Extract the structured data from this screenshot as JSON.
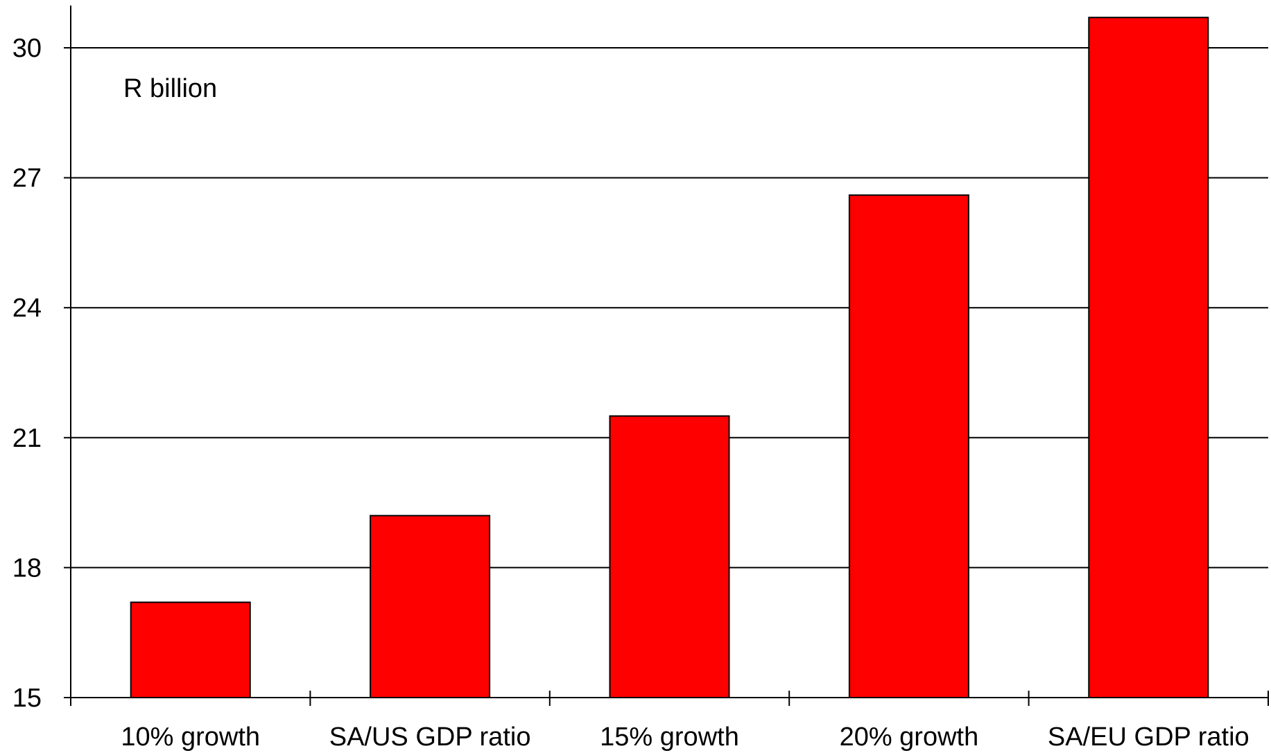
{
  "chart_data": {
    "type": "bar",
    "unit_label": "R billion",
    "categories": [
      "10% growth",
      "SA/US GDP ratio",
      "15% growth",
      "20% growth",
      "SA/EU GDP ratio"
    ],
    "values": [
      17.2,
      19.2,
      21.5,
      26.6,
      30.7
    ],
    "yticks": [
      15,
      18,
      21,
      24,
      27,
      30
    ],
    "ylim": [
      15,
      31
    ],
    "grid": true,
    "bar_color": "#ff0000",
    "bar_stroke": "#000000",
    "xlabel": "",
    "ylabel": ""
  }
}
